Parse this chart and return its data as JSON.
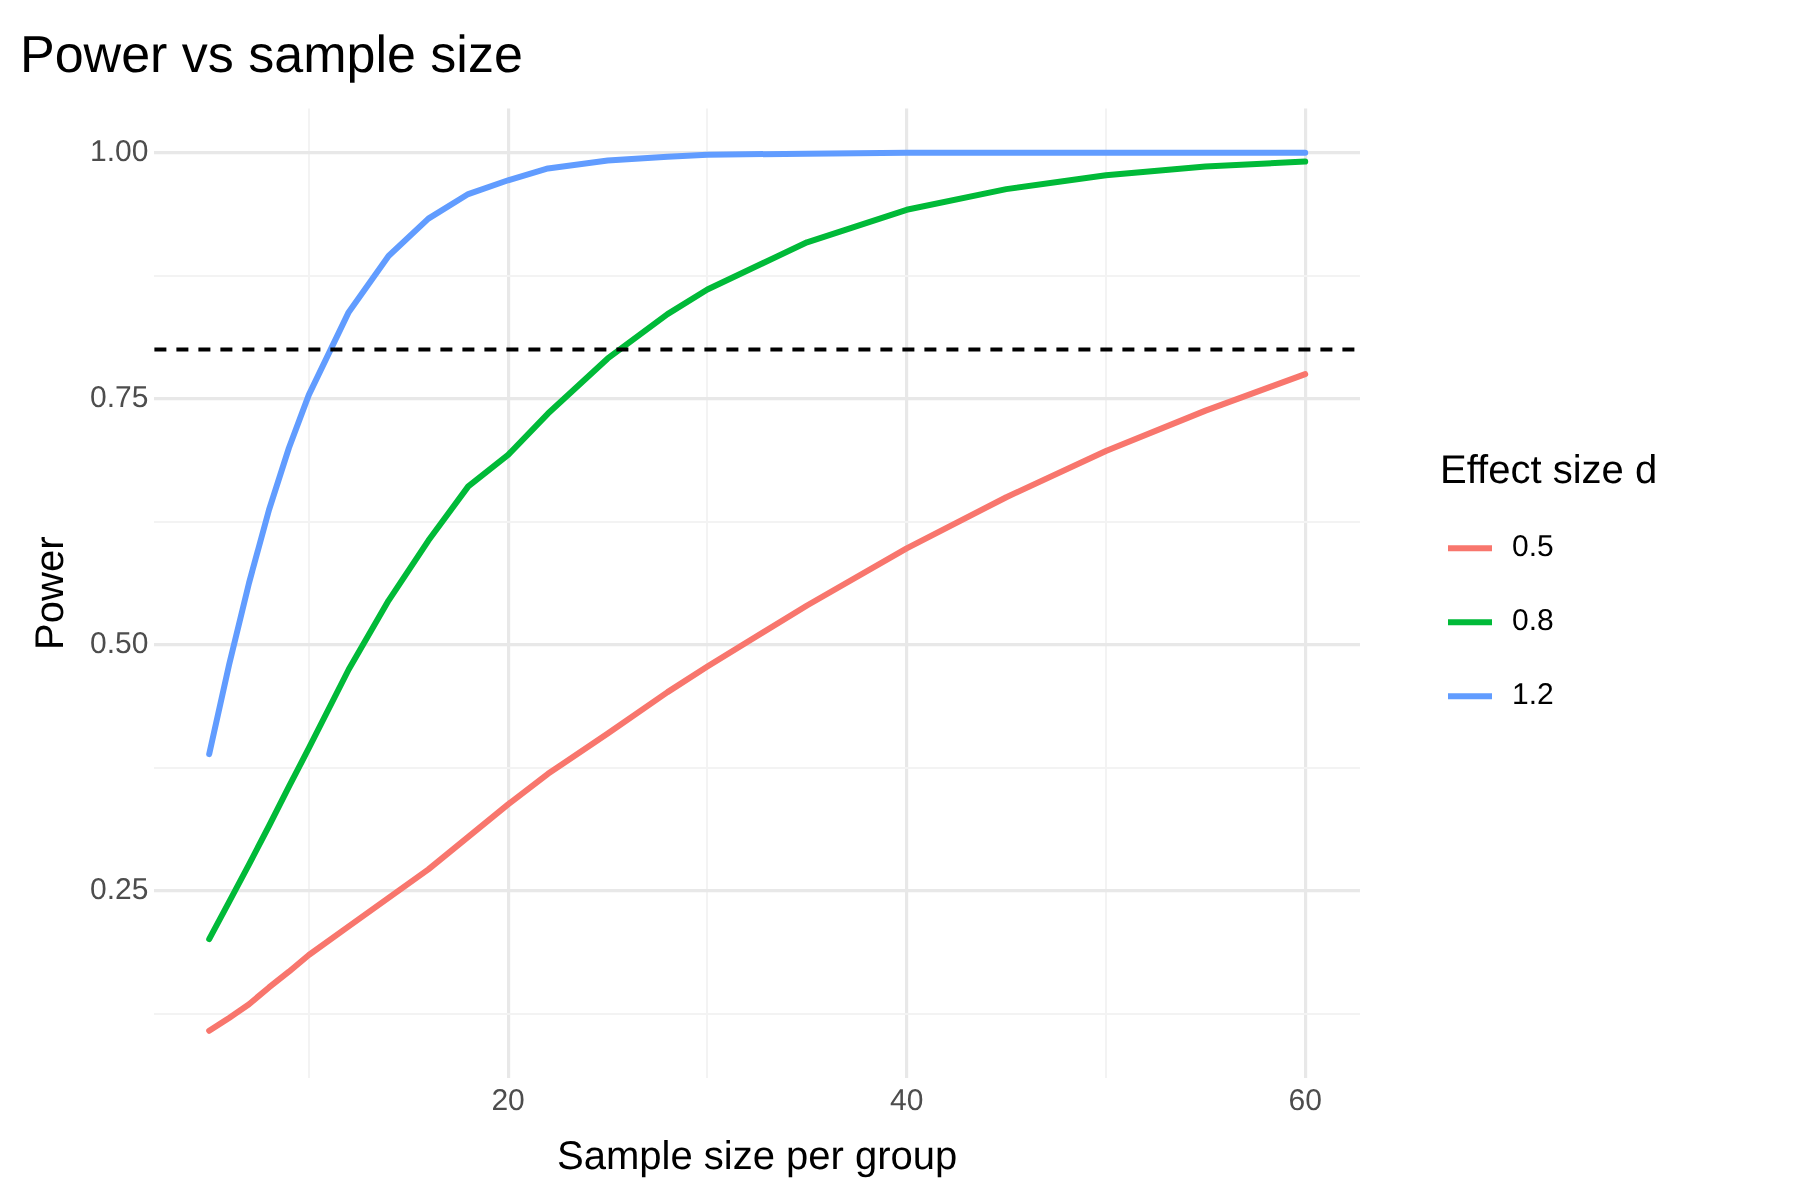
{
  "chart_data": {
    "type": "line",
    "title": "Power vs sample size",
    "xlabel": "Sample size per group",
    "ylabel": "Power",
    "legend_title": "Effect size d",
    "x": [
      5,
      6,
      7,
      8,
      9,
      10,
      12,
      14,
      16,
      18,
      20,
      22,
      25,
      28,
      30,
      35,
      40,
      45,
      50,
      55,
      60
    ],
    "series": [
      {
        "name": "0.5",
        "color": "#f8766d",
        "values": [
          0.108,
          0.121,
          0.135,
          0.152,
          0.168,
          0.185,
          0.214,
          0.243,
          0.272,
          0.305,
          0.338,
          0.369,
          0.41,
          0.452,
          0.478,
          0.54,
          0.598,
          0.65,
          0.697,
          0.738,
          0.775
        ]
      },
      {
        "name": "0.8",
        "color": "#00ba38",
        "values": [
          0.201,
          0.239,
          0.277,
          0.316,
          0.356,
          0.395,
          0.475,
          0.545,
          0.606,
          0.661,
          0.693,
          0.735,
          0.791,
          0.836,
          0.861,
          0.909,
          0.942,
          0.963,
          0.977,
          0.986,
          0.991
        ]
      },
      {
        "name": "1.2",
        "color": "#619cff",
        "values": [
          0.389,
          0.48,
          0.563,
          0.637,
          0.7,
          0.754,
          0.838,
          0.895,
          0.933,
          0.958,
          0.972,
          0.984,
          0.992,
          0.996,
          0.998,
          0.999,
          1.0,
          1.0,
          1.0,
          1.0,
          1.0
        ]
      }
    ],
    "xlim": [
      2.25,
      62.75
    ],
    "xticks": [
      {
        "value": 10,
        "label": null
      },
      20,
      {
        "value": 30,
        "label": null
      },
      40,
      {
        "value": 50,
        "label": null
      },
      60
    ],
    "ylim": [
      0.06,
      1.045
    ],
    "yticks": [
      {
        "value": 0.125,
        "label": null
      },
      {
        "value": 0.25,
        "label": "0.25"
      },
      {
        "value": 0.375,
        "label": null
      },
      {
        "value": 0.5,
        "label": "0.50"
      },
      {
        "value": 0.625,
        "label": null
      },
      {
        "value": 0.75,
        "label": "0.75"
      },
      {
        "value": 0.875,
        "label": null
      },
      {
        "value": 1,
        "label": "1.00"
      }
    ],
    "ref_lines": [
      {
        "axis": "y",
        "value": 0.8,
        "color": "#000000",
        "line_style": "dashed"
      }
    ],
    "grid": true,
    "legend": "right",
    "marker": "none",
    "line_style": "solid"
  }
}
